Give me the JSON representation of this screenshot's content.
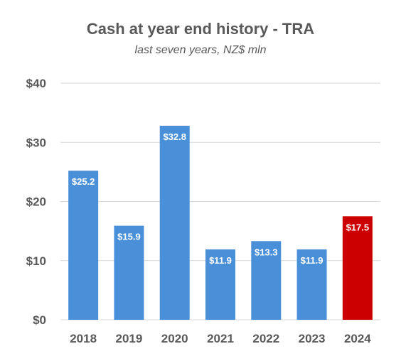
{
  "chart_data": {
    "type": "bar",
    "title": "Cash at year end history - TRA",
    "subtitle": "last seven years, NZ$ mln",
    "xlabel": "",
    "ylabel": "",
    "categories": [
      "2018",
      "2019",
      "2020",
      "2021",
      "2022",
      "2023",
      "2024"
    ],
    "values": [
      25.2,
      15.9,
      32.8,
      11.9,
      13.3,
      11.9,
      17.5
    ],
    "data_labels": [
      "$25.2",
      "$15.9",
      "$32.8",
      "$11.9",
      "$13.3",
      "$11.9",
      "$17.5"
    ],
    "bar_colors": [
      "#4a90d9",
      "#4a90d9",
      "#4a90d9",
      "#4a90d9",
      "#4a90d9",
      "#4a90d9",
      "#cc0000"
    ],
    "ylim": [
      0,
      40
    ],
    "yticks": [
      0,
      10,
      20,
      30,
      40
    ],
    "ytick_labels": [
      "$0",
      "$10",
      "$20",
      "$30",
      "$40"
    ],
    "grid": true,
    "legend": "none"
  }
}
